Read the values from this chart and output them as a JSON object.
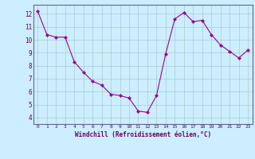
{
  "x": [
    0,
    1,
    2,
    3,
    4,
    5,
    6,
    7,
    8,
    9,
    10,
    11,
    12,
    13,
    14,
    15,
    16,
    17,
    18,
    19,
    20,
    21,
    22,
    23
  ],
  "y": [
    12.2,
    10.4,
    10.2,
    10.2,
    8.3,
    7.5,
    6.8,
    6.5,
    5.8,
    5.7,
    5.5,
    4.5,
    4.4,
    5.7,
    8.9,
    11.6,
    12.1,
    11.4,
    11.5,
    10.4,
    9.6,
    9.1,
    8.6,
    9.2
  ],
  "xlabel": "Windchill (Refroidissement éolien,°C)",
  "ylim": [
    3.5,
    12.7
  ],
  "xlim": [
    -0.5,
    23.5
  ],
  "yticks": [
    4,
    5,
    6,
    7,
    8,
    9,
    10,
    11,
    12
  ],
  "xticks": [
    0,
    1,
    2,
    3,
    4,
    5,
    6,
    7,
    8,
    9,
    10,
    11,
    12,
    13,
    14,
    15,
    16,
    17,
    18,
    19,
    20,
    21,
    22,
    23
  ],
  "line_color": "#990099",
  "marker_color": "#990099",
  "bg_color": "#cceeff",
  "grid_color": "#aacccc",
  "axis_color": "#660066",
  "spine_color": "#666699"
}
